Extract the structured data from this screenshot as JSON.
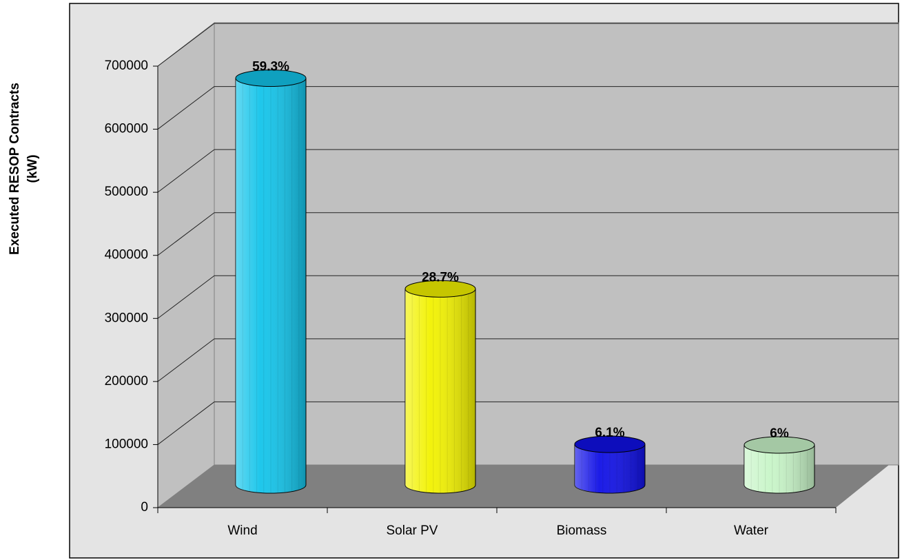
{
  "chart_data": {
    "type": "bar3d",
    "y_label": [
      "Executed RESOP Contracts",
      "(kW)"
    ],
    "categories": [
      "Wind",
      "Solar PV",
      "Biomass",
      "Water"
    ],
    "values": [
      647000,
      313000,
      66600,
      65500
    ],
    "annotations": [
      "59.3%",
      "28.7%",
      "6.1%",
      "6%"
    ],
    "colors": [
      "#13c4ea",
      "#f2f200",
      "#1010e6",
      "#c8f5c8"
    ],
    "ylim": [
      0,
      700000
    ],
    "yticks": [
      0,
      100000,
      200000,
      300000,
      400000,
      500000,
      600000,
      700000
    ],
    "grid": true
  }
}
